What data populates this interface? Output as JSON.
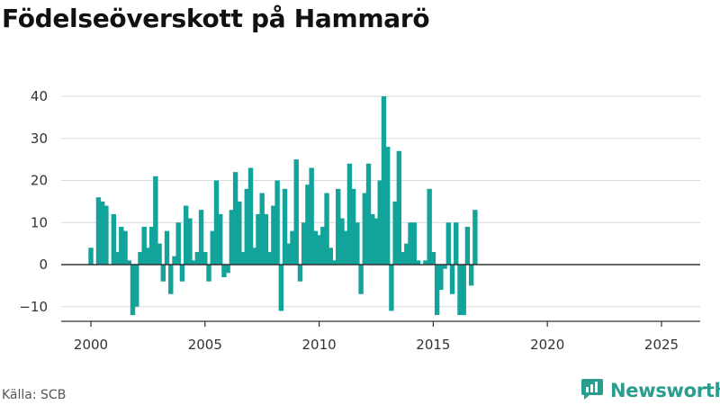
{
  "title": "Födelseöverskott på Hammarö",
  "source": "Källa: SCB",
  "brand": {
    "name": "Newsworthy",
    "icon": "newsworthy-logo-icon",
    "color": "#2a9d8f"
  },
  "chart_data": {
    "type": "bar",
    "title": "Födelseöverskott på Hammarö",
    "xlabel": "",
    "ylabel": "",
    "frequency": "monthly (every other month)",
    "x_start": "2000-01",
    "x_step_months": 2,
    "color": "#12a39a",
    "ylim": [
      -14,
      42
    ],
    "yticks": [
      -10,
      0,
      10,
      20,
      30,
      40
    ],
    "xticks": [
      2000,
      2005,
      2010,
      2015,
      2020,
      2025
    ],
    "grid": true,
    "legend": "none",
    "values": [
      4,
      0,
      16,
      15,
      14,
      0,
      12,
      3,
      9,
      8,
      1,
      -12,
      -10,
      3,
      9,
      4,
      9,
      21,
      5,
      -4,
      8,
      -7,
      2,
      10,
      -4,
      14,
      11,
      1,
      3,
      13,
      3,
      -4,
      8,
      20,
      12,
      -3,
      -2,
      13,
      22,
      15,
      3,
      18,
      23,
      4,
      12,
      17,
      12,
      3,
      14,
      20,
      -11,
      18,
      5,
      8,
      25,
      -4,
      10,
      19,
      23,
      8,
      7,
      9,
      17,
      4,
      1,
      18,
      11,
      8,
      24,
      18,
      10,
      -7,
      17,
      24,
      12,
      11,
      20,
      40,
      28,
      -11,
      15,
      27,
      3,
      5,
      10,
      10,
      1,
      0,
      1,
      18,
      3,
      -12,
      -6,
      -1,
      10,
      -7,
      10,
      -12,
      -12,
      9,
      -5,
      13
    ]
  }
}
